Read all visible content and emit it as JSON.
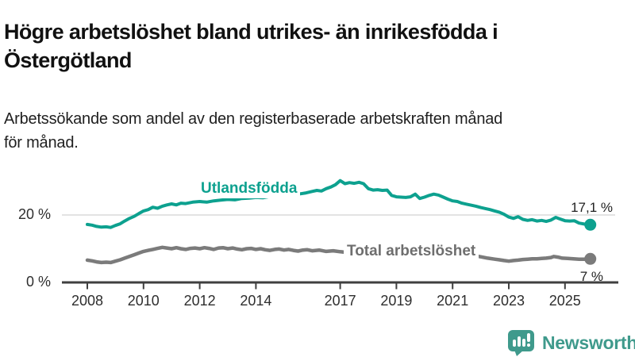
{
  "header": {
    "title_lines": [
      "Högre arbetslöshet bland utrikes- än inrikesfödda i",
      "Östergötland"
    ],
    "subtitle_lines": [
      "Arbetssökande som andel av den registerbaserade arbetskraften månad",
      "för månad."
    ]
  },
  "chart_data": {
    "type": "line",
    "title": "Högre arbetslöshet bland utrikes- än inrikesfödda i Östergötland",
    "subtitle": "Arbetssökande som andel av den registerbaserade arbetskraften månad för månad.",
    "unit": "%",
    "x_axis": {
      "range": [
        2007.1,
        2026.9
      ],
      "ticks": [
        2008,
        2010,
        2012,
        2014,
        2017,
        2019,
        2021,
        2023,
        2025
      ]
    },
    "y_axis": {
      "range": [
        0,
        32
      ],
      "ticks": [
        {
          "value": 0,
          "label": "0 %"
        },
        {
          "value": 20,
          "label": "20 %"
        }
      ],
      "gridlines": [
        20
      ]
    },
    "style": {
      "axis_color": "#3f3f3f",
      "grid_color": "#dadada"
    },
    "legend_position": "inline-labels",
    "series": [
      {
        "name": "Utlandsfödda",
        "color": "#0da18f",
        "stroke_width": 4,
        "end_label": "17,1 %",
        "end_value": 17.1,
        "points": [
          [
            2008.0,
            17.2
          ],
          [
            2008.17,
            17.0
          ],
          [
            2008.33,
            16.6
          ],
          [
            2008.5,
            16.4
          ],
          [
            2008.67,
            16.5
          ],
          [
            2008.83,
            16.3
          ],
          [
            2009.0,
            16.9
          ],
          [
            2009.17,
            17.4
          ],
          [
            2009.33,
            18.2
          ],
          [
            2009.5,
            19.0
          ],
          [
            2009.67,
            19.6
          ],
          [
            2009.83,
            20.4
          ],
          [
            2010.0,
            21.2
          ],
          [
            2010.17,
            21.6
          ],
          [
            2010.33,
            22.3
          ],
          [
            2010.5,
            22.0
          ],
          [
            2010.67,
            22.6
          ],
          [
            2010.83,
            23.0
          ],
          [
            2011.0,
            23.3
          ],
          [
            2011.17,
            23.0
          ],
          [
            2011.33,
            23.5
          ],
          [
            2011.5,
            23.4
          ],
          [
            2011.75,
            23.8
          ],
          [
            2012.0,
            24.0
          ],
          [
            2012.25,
            23.8
          ],
          [
            2012.5,
            24.2
          ],
          [
            2012.75,
            24.4
          ],
          [
            2013.0,
            24.6
          ],
          [
            2013.25,
            24.5
          ],
          [
            2013.5,
            24.9
          ],
          [
            2013.75,
            25.0
          ],
          [
            2014.0,
            25.2
          ],
          [
            2014.25,
            25.1
          ],
          [
            2014.5,
            25.5
          ],
          [
            2014.75,
            25.6
          ],
          [
            2015.0,
            25.9
          ],
          [
            2015.25,
            25.8
          ],
          [
            2015.5,
            26.2
          ],
          [
            2015.75,
            26.5
          ],
          [
            2016.0,
            27.0
          ],
          [
            2016.17,
            27.3
          ],
          [
            2016.33,
            27.1
          ],
          [
            2016.5,
            27.8
          ],
          [
            2016.67,
            28.3
          ],
          [
            2016.83,
            29.0
          ],
          [
            2017.0,
            30.2
          ],
          [
            2017.17,
            29.3
          ],
          [
            2017.33,
            29.6
          ],
          [
            2017.5,
            29.4
          ],
          [
            2017.67,
            29.7
          ],
          [
            2017.83,
            29.3
          ],
          [
            2018.0,
            27.8
          ],
          [
            2018.17,
            27.4
          ],
          [
            2018.33,
            27.5
          ],
          [
            2018.5,
            27.3
          ],
          [
            2018.67,
            27.4
          ],
          [
            2018.83,
            25.8
          ],
          [
            2019.0,
            25.4
          ],
          [
            2019.17,
            25.3
          ],
          [
            2019.33,
            25.2
          ],
          [
            2019.5,
            25.4
          ],
          [
            2019.67,
            26.2
          ],
          [
            2019.83,
            24.9
          ],
          [
            2020.0,
            25.3
          ],
          [
            2020.17,
            25.8
          ],
          [
            2020.33,
            26.2
          ],
          [
            2020.5,
            25.9
          ],
          [
            2020.67,
            25.3
          ],
          [
            2020.83,
            24.7
          ],
          [
            2021.0,
            24.2
          ],
          [
            2021.17,
            24.0
          ],
          [
            2021.33,
            23.5
          ],
          [
            2021.5,
            23.2
          ],
          [
            2021.67,
            22.9
          ],
          [
            2021.83,
            22.6
          ],
          [
            2022.0,
            22.2
          ],
          [
            2022.17,
            21.9
          ],
          [
            2022.33,
            21.6
          ],
          [
            2022.5,
            21.2
          ],
          [
            2022.67,
            20.8
          ],
          [
            2022.83,
            20.2
          ],
          [
            2023.0,
            19.4
          ],
          [
            2023.17,
            19.0
          ],
          [
            2023.33,
            19.5
          ],
          [
            2023.5,
            18.7
          ],
          [
            2023.67,
            18.4
          ],
          [
            2023.83,
            18.6
          ],
          [
            2024.0,
            18.2
          ],
          [
            2024.17,
            18.4
          ],
          [
            2024.33,
            18.1
          ],
          [
            2024.5,
            18.5
          ],
          [
            2024.67,
            19.3
          ],
          [
            2024.83,
            18.8
          ],
          [
            2025.0,
            18.3
          ],
          [
            2025.17,
            18.2
          ],
          [
            2025.33,
            18.3
          ],
          [
            2025.5,
            17.6
          ],
          [
            2025.7,
            17.3
          ],
          [
            2025.9,
            17.1
          ]
        ]
      },
      {
        "name": "Total arbetslöshet",
        "color": "#7b7b7b",
        "stroke_width": 4.5,
        "end_label": "7 %",
        "end_value": 7.0,
        "points": [
          [
            2008.0,
            6.6
          ],
          [
            2008.17,
            6.4
          ],
          [
            2008.33,
            6.1
          ],
          [
            2008.5,
            5.9
          ],
          [
            2008.67,
            6.0
          ],
          [
            2008.83,
            5.9
          ],
          [
            2009.0,
            6.3
          ],
          [
            2009.17,
            6.7
          ],
          [
            2009.33,
            7.2
          ],
          [
            2009.5,
            7.7
          ],
          [
            2009.67,
            8.2
          ],
          [
            2009.83,
            8.7
          ],
          [
            2010.0,
            9.2
          ],
          [
            2010.17,
            9.5
          ],
          [
            2010.33,
            9.8
          ],
          [
            2010.5,
            10.1
          ],
          [
            2010.67,
            10.4
          ],
          [
            2010.83,
            10.2
          ],
          [
            2011.0,
            10.0
          ],
          [
            2011.17,
            10.3
          ],
          [
            2011.33,
            10.0
          ],
          [
            2011.5,
            9.8
          ],
          [
            2011.67,
            10.1
          ],
          [
            2011.83,
            10.2
          ],
          [
            2012.0,
            10.0
          ],
          [
            2012.17,
            10.3
          ],
          [
            2012.33,
            10.1
          ],
          [
            2012.5,
            9.8
          ],
          [
            2012.67,
            10.2
          ],
          [
            2012.83,
            10.3
          ],
          [
            2013.0,
            10.0
          ],
          [
            2013.17,
            10.2
          ],
          [
            2013.33,
            9.9
          ],
          [
            2013.5,
            9.7
          ],
          [
            2013.67,
            10.0
          ],
          [
            2013.83,
            10.1
          ],
          [
            2014.0,
            9.8
          ],
          [
            2014.17,
            10.0
          ],
          [
            2014.33,
            9.7
          ],
          [
            2014.5,
            9.5
          ],
          [
            2014.67,
            9.8
          ],
          [
            2014.83,
            9.9
          ],
          [
            2015.0,
            9.6
          ],
          [
            2015.17,
            9.8
          ],
          [
            2015.33,
            9.5
          ],
          [
            2015.5,
            9.3
          ],
          [
            2015.67,
            9.6
          ],
          [
            2015.83,
            9.7
          ],
          [
            2016.0,
            9.4
          ],
          [
            2016.25,
            9.6
          ],
          [
            2016.5,
            9.2
          ],
          [
            2016.75,
            9.4
          ],
          [
            2017.0,
            9.1
          ],
          [
            2017.25,
            8.9
          ],
          [
            2017.5,
            8.8
          ],
          [
            2017.75,
            8.6
          ],
          [
            2018.0,
            8.5
          ],
          [
            2018.25,
            8.4
          ],
          [
            2018.5,
            8.3
          ],
          [
            2018.75,
            8.2
          ],
          [
            2019.0,
            8.1
          ],
          [
            2019.25,
            8.0
          ],
          [
            2019.5,
            8.1
          ],
          [
            2019.75,
            8.0
          ],
          [
            2020.0,
            8.3
          ],
          [
            2020.25,
            9.2
          ],
          [
            2020.5,
            9.5
          ],
          [
            2020.75,
            9.3
          ],
          [
            2021.0,
            9.0
          ],
          [
            2021.25,
            8.7
          ],
          [
            2021.5,
            8.3
          ],
          [
            2021.75,
            8.0
          ],
          [
            2022.0,
            7.6
          ],
          [
            2022.25,
            7.2
          ],
          [
            2022.5,
            6.9
          ],
          [
            2022.67,
            6.7
          ],
          [
            2022.83,
            6.5
          ],
          [
            2023.0,
            6.3
          ],
          [
            2023.17,
            6.5
          ],
          [
            2023.33,
            6.6
          ],
          [
            2023.5,
            6.8
          ],
          [
            2023.67,
            6.9
          ],
          [
            2023.83,
            7.0
          ],
          [
            2024.0,
            7.0
          ],
          [
            2024.17,
            7.1
          ],
          [
            2024.33,
            7.2
          ],
          [
            2024.5,
            7.4
          ],
          [
            2024.6,
            7.7
          ],
          [
            2024.75,
            7.5
          ],
          [
            2024.9,
            7.2
          ],
          [
            2025.1,
            7.1
          ],
          [
            2025.3,
            7.0
          ],
          [
            2025.5,
            6.9
          ],
          [
            2025.7,
            6.9
          ],
          [
            2025.9,
            7.0
          ]
        ]
      }
    ]
  },
  "footer": {
    "brand": "Newsworthy",
    "brand_color": "#3f9a8c",
    "logo_icon": "newsworthy-bar-chart-bubble-icon"
  }
}
